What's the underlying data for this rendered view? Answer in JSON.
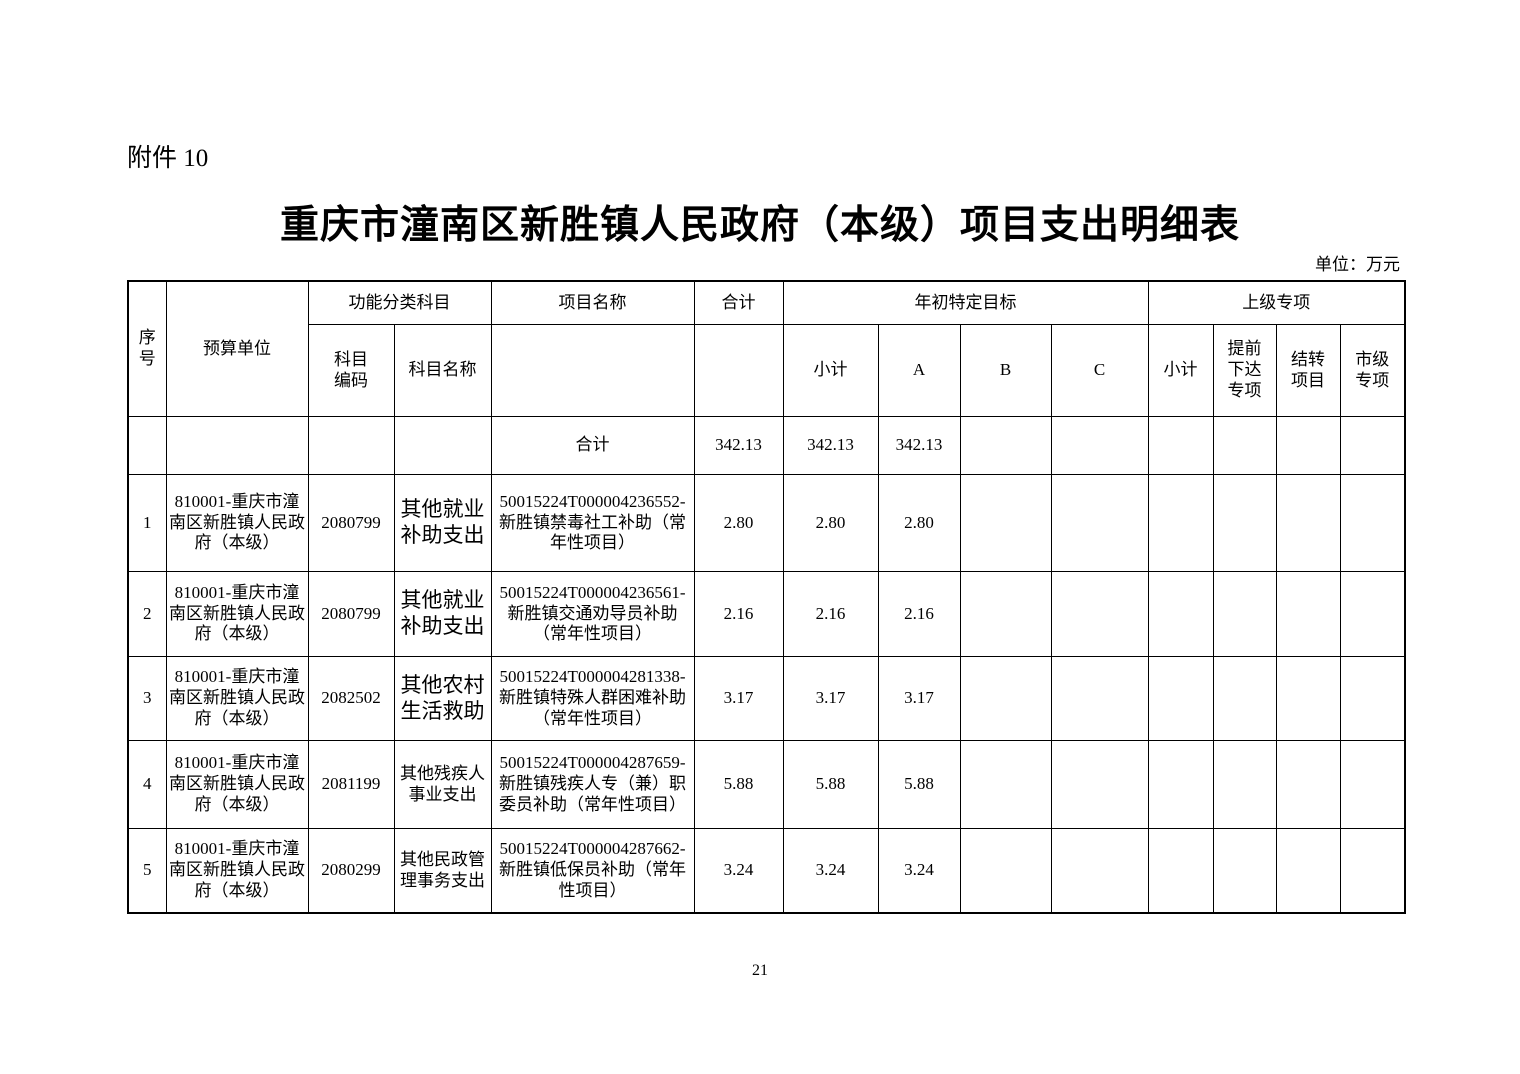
{
  "page": {
    "attachment_label": "附件 10",
    "title": "重庆市潼南区新胜镇人民政府（本级）项目支出明细表",
    "unit_note": "单位：万元",
    "page_number": "21"
  },
  "table": {
    "headers": {
      "serial": "序\n号",
      "budget_unit": "预算单位",
      "func_group": "功能分类科目",
      "subject_code": "科目\n编码",
      "subject_name": "科目名称",
      "project_name": "项目名称",
      "total": "合计",
      "year_begin_group": "年初特定目标",
      "subtotal1": "小计",
      "col_a": "A",
      "col_b": "B",
      "col_c": "C",
      "superior_group": "上级专项",
      "subtotal2": "小计",
      "advance_special": "提前\n下达\n专项",
      "carryover": "结转\n项目",
      "city_special": "市级\n专项"
    },
    "total_row": {
      "label": "合计",
      "total": "342.13",
      "subtotal1": "342.13",
      "a": "342.13"
    },
    "rows": [
      {
        "no": "1",
        "budget_unit": "810001-重庆市潼南区新胜镇人民政府（本级）",
        "subject_code": "2080799",
        "subject_name": "其他就业补助支出",
        "subject_large": true,
        "project_name": "50015224T000004236552-新胜镇禁毒社工补助（常年性项目）",
        "total": "2.80",
        "subtotal1": "2.80",
        "a": "2.80"
      },
      {
        "no": "2",
        "budget_unit": "810001-重庆市潼南区新胜镇人民政府（本级）",
        "subject_code": "2080799",
        "subject_name": "其他就业补助支出",
        "subject_large": true,
        "project_name": "50015224T000004236561-新胜镇交通劝导员补助（常年性项目）",
        "total": "2.16",
        "subtotal1": "2.16",
        "a": "2.16"
      },
      {
        "no": "3",
        "budget_unit": "810001-重庆市潼南区新胜镇人民政府（本级）",
        "subject_code": "2082502",
        "subject_name": "其他农村生活救助",
        "subject_large": true,
        "project_name": "50015224T000004281338-新胜镇特殊人群困难补助（常年性项目）",
        "total": "3.17",
        "subtotal1": "3.17",
        "a": "3.17"
      },
      {
        "no": "4",
        "budget_unit": "810001-重庆市潼南区新胜镇人民政府（本级）",
        "subject_code": "2081199",
        "subject_name": "其他残疾人事业支出",
        "subject_large": false,
        "project_name": "50015224T000004287659-新胜镇残疾人专（兼）职委员补助（常年性项目）",
        "total": "5.88",
        "subtotal1": "5.88",
        "a": "5.88"
      },
      {
        "no": "5",
        "budget_unit": "810001-重庆市潼南区新胜镇人民政府（本级）",
        "subject_code": "2080299",
        "subject_name": "其他民政管理事务支出",
        "subject_large": false,
        "project_name": "50015224T000004287662-新胜镇低保员补助（常年性项目）",
        "total": "3.24",
        "subtotal1": "3.24",
        "a": "3.24"
      }
    ]
  }
}
